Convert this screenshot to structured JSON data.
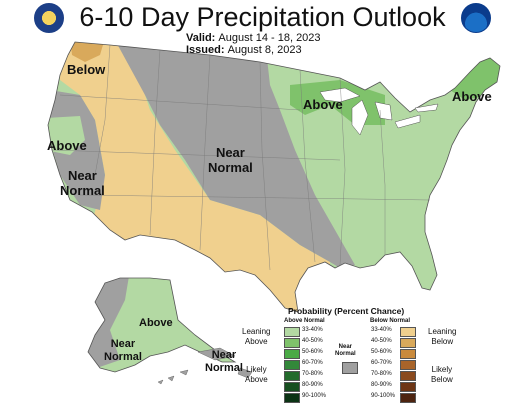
{
  "title": "6-10 Day Precipitation Outlook",
  "valid_label": "Valid:",
  "valid_value": "August 14 - 18, 2023",
  "issued_label": "Issued:",
  "issued_value": "August 8, 2023",
  "map_labels": {
    "below_nw": "Below",
    "above_ca": "Above",
    "near_normal_ca": [
      "Near",
      "Normal"
    ],
    "near_normal_center": [
      "Near",
      "Normal"
    ],
    "above_glakes": "Above",
    "above_ne": "Above",
    "above_ak": "Above",
    "near_normal_ak": [
      "Near",
      "Normal"
    ],
    "near_normal_aleut": [
      "Near",
      "Normal"
    ]
  },
  "legend": {
    "title": "Probability (Percent Chance)",
    "above_header": "Above Normal",
    "below_header": "Below Normal",
    "near_normal": [
      "Near",
      "Normal"
    ],
    "leaning_above": [
      "Leaning",
      "Above"
    ],
    "likely_above": [
      "Likely",
      "Above"
    ],
    "leaning_below": [
      "Leaning",
      "Below"
    ],
    "likely_below": [
      "Likely",
      "Below"
    ],
    "ranges": [
      "33-40%",
      "40-50%",
      "50-60%",
      "60-70%",
      "70-80%",
      "80-90%",
      "90-100%"
    ],
    "above_colors": [
      "#b3d9a3",
      "#7fc26b",
      "#4aaa45",
      "#33883a",
      "#236b2c",
      "#174f20",
      "#0b3314"
    ],
    "below_colors": [
      "#f0d08e",
      "#d9a95b",
      "#c98a3c",
      "#a8642a",
      "#8a4a1e",
      "#6d3515",
      "#4d2410"
    ],
    "near_normal_color": "#a0a0a0"
  },
  "map_colors": {
    "above": "#b3d9a3",
    "above_mid": "#7fc26b",
    "below": "#f0d08e",
    "below_mid": "#d9a95b",
    "near_normal": "#a0a0a0",
    "outline": "#555555"
  },
  "icons": [
    "noaa-doc-seal-icon",
    "noaa-logo-icon"
  ]
}
